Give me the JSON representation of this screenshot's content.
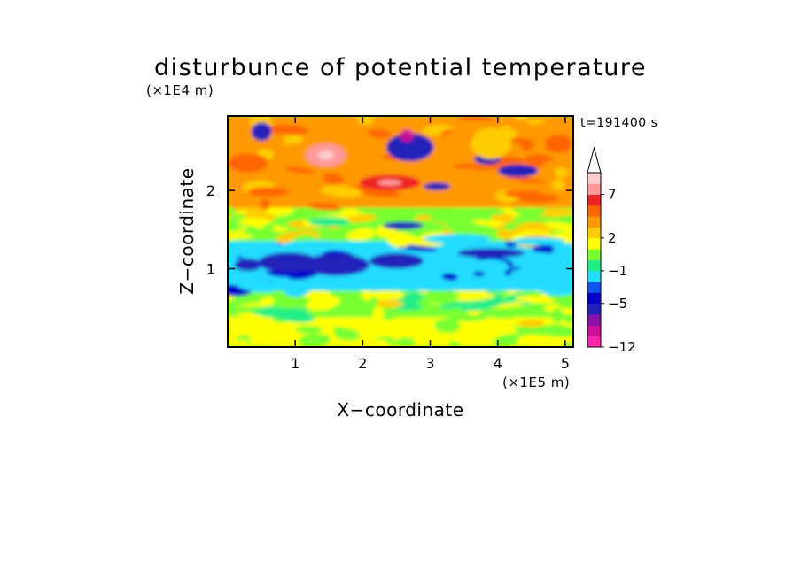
{
  "chart_data": {
    "type": "heatmap",
    "title": "disturbunce of potential temperature",
    "xlabel": "X−coordinate",
    "ylabel": "Z−coordinate",
    "x_unit": "(×1E5 m)",
    "y_unit": "(×1E4 m)",
    "time_label": "t=191400 s",
    "xlim": [
      0.0,
      5.12
    ],
    "ylim": [
      0.0,
      2.95
    ],
    "x_ticks": [
      1,
      2,
      3,
      4,
      5
    ],
    "y_ticks": [
      1,
      2
    ],
    "x_tick_labels": [
      "1",
      "2",
      "3",
      "4",
      "5"
    ],
    "y_tick_labels": [
      "1",
      "2"
    ],
    "colorbar": {
      "levels": [
        -12,
        -10,
        -8,
        -6,
        -5,
        -3,
        -2,
        -1,
        0,
        1,
        2,
        3,
        5,
        6,
        7,
        8,
        10
      ],
      "labels": [
        {
          "value": -12,
          "text": "−12"
        },
        {
          "value": -5,
          "text": "−5"
        },
        {
          "value": -1,
          "text": "−1"
        },
        {
          "value": 2,
          "text": "2"
        },
        {
          "value": 7,
          "text": "7"
        }
      ],
      "colors": [
        "#ff22aa",
        "#cc1199",
        "#8811aa",
        "#2222bb",
        "#0000cc",
        "#1155ee",
        "#22ddff",
        "#22ee88",
        "#77ff33",
        "#ffff00",
        "#ffcc00",
        "#ff9900",
        "#ff6600",
        "#ee2222",
        "#ff9999",
        "#ffcccc"
      ],
      "extend_max": true
    },
    "layers": [
      {
        "z_range": [
          0.0,
          0.35
        ],
        "description": "yellow/green",
        "value_range": [
          0,
          2
        ]
      },
      {
        "z_range": [
          0.35,
          0.75
        ],
        "description": "green/yellow",
        "value_range": [
          -1,
          2
        ]
      },
      {
        "z_range": [
          0.75,
          1.35
        ],
        "description": "cyan with blue patches",
        "value_range": [
          -6,
          -1
        ]
      },
      {
        "z_range": [
          1.35,
          1.75
        ],
        "description": "green/yellow/orange",
        "value_range": [
          -1,
          5
        ]
      },
      {
        "z_range": [
          1.75,
          2.95
        ],
        "description": "orange/red with blue patches",
        "value_range": [
          -8,
          10
        ]
      }
    ]
  }
}
